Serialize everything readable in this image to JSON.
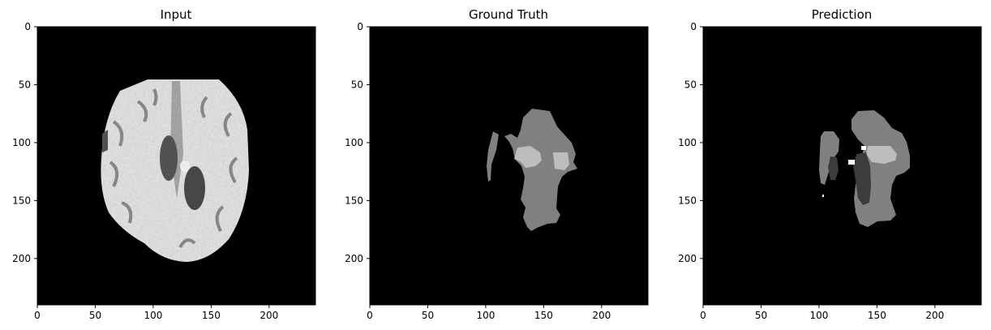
{
  "figure": {
    "panels": [
      {
        "title": "Input",
        "kind": "mri-input"
      },
      {
        "title": "Ground Truth",
        "kind": "segmentation-ground-truth"
      },
      {
        "title": "Prediction",
        "kind": "segmentation-prediction"
      }
    ],
    "colors": {
      "background": "#000000",
      "tissue_light": "#e4e4e4",
      "tissue_mid": "#b8b8b8",
      "tissue_dark": "#4a4a4a",
      "label_gray": "#808080",
      "label_light": "#bdbdbd",
      "label_dark": "#3c3c3c",
      "label_white": "#ffffff"
    }
  },
  "chart_data": [
    {
      "type": "image",
      "title": "Input",
      "xlim": [
        0,
        240
      ],
      "ylim": [
        240,
        0
      ],
      "x_ticks": [
        0,
        50,
        100,
        150,
        200
      ],
      "y_ticks": [
        0,
        50,
        100,
        150,
        200
      ]
    },
    {
      "type": "image",
      "title": "Ground Truth",
      "xlim": [
        0,
        240
      ],
      "ylim": [
        240,
        0
      ],
      "x_ticks": [
        0,
        50,
        100,
        150,
        200
      ],
      "y_ticks": [
        0,
        50,
        100,
        150,
        200
      ]
    },
    {
      "type": "image",
      "title": "Prediction",
      "xlim": [
        0,
        240
      ],
      "ylim": [
        240,
        0
      ],
      "x_ticks": [
        0,
        50,
        100,
        150,
        200
      ],
      "y_ticks": [
        0,
        50,
        100,
        150,
        200
      ]
    }
  ]
}
